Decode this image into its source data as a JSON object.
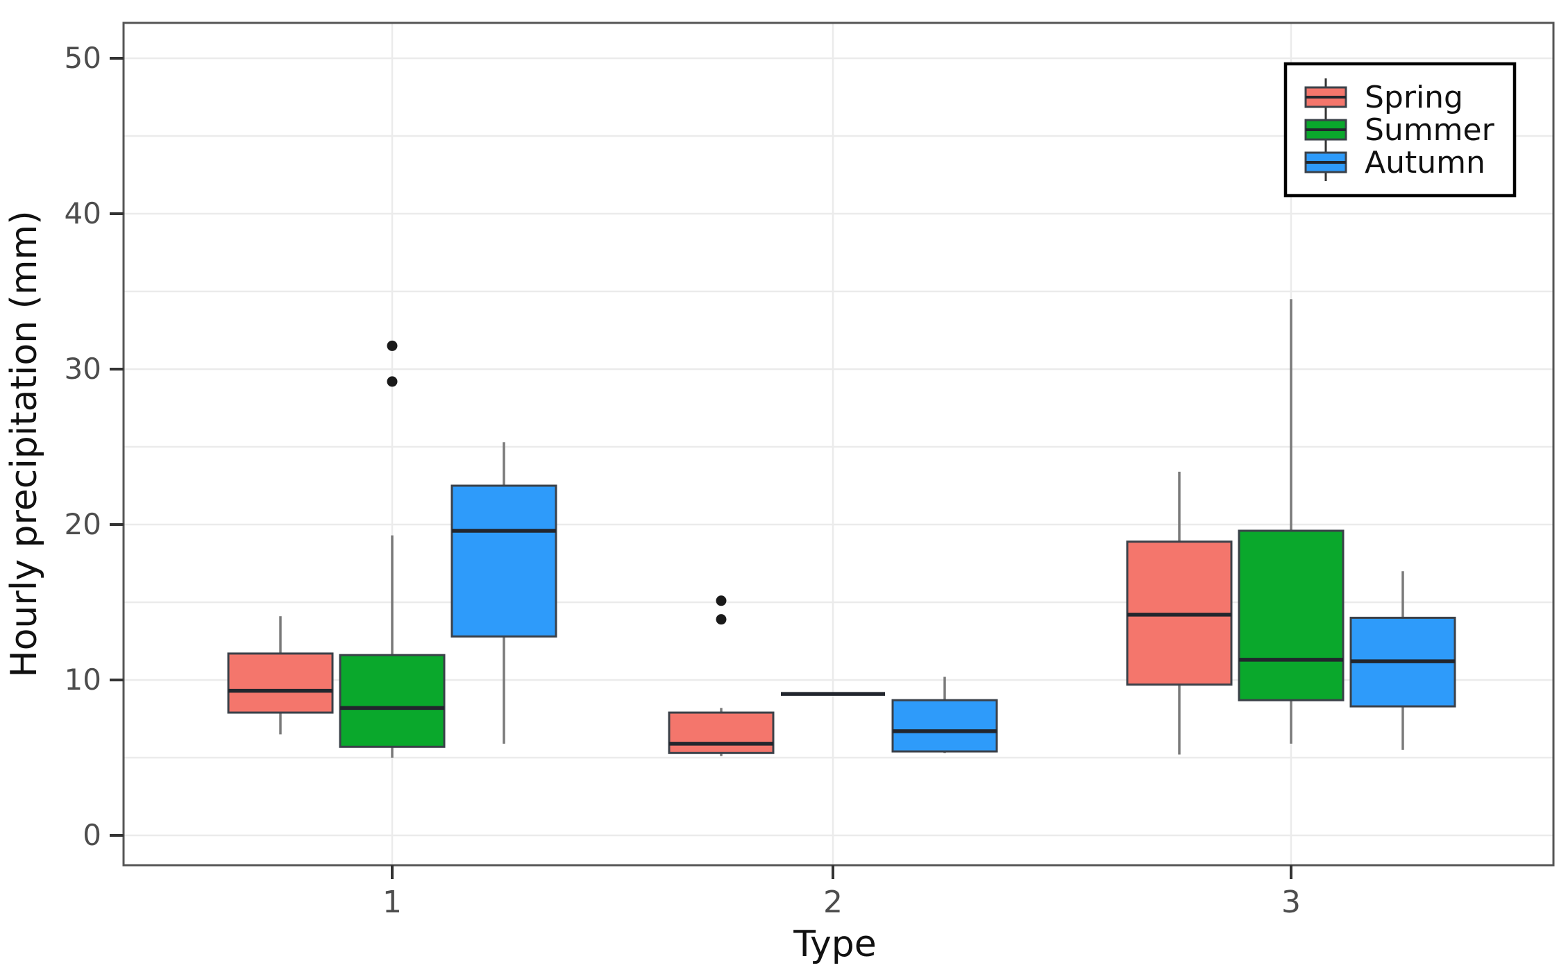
{
  "figure": {
    "background": "#ffffff",
    "frame_color": "#555555",
    "grid_color": "#ebebeb",
    "tick_color": "#333333",
    "tick_label_color": "#4d4d4d",
    "axis_title_color": "#111111",
    "box_stroke_color": "#3b4149",
    "median_color": "#22262d",
    "whisker_color": "#7a7a7a",
    "outlier_color": "#1a1a1a",
    "legend_border_color": "#000000",
    "legend_background": "#ffffff"
  },
  "chart_data": {
    "type": "boxplot",
    "title": "",
    "xlabel": "Type",
    "ylabel": "Hourly precipitation (mm)",
    "categories": [
      "1",
      "2",
      "3"
    ],
    "y_ticks": [
      0,
      10,
      20,
      30,
      40,
      50
    ],
    "grid_step": 5,
    "ylim": [
      -2,
      52.5
    ],
    "grid": true,
    "legend_position": "top-right",
    "legend_entries": [
      "Spring",
      "Summer",
      "Autumn"
    ],
    "series": [
      {
        "name": "Spring",
        "color": "#f4766c",
        "boxes": [
          {
            "category": "1",
            "whisker_low": 6.5,
            "q1": 7.9,
            "median": 9.3,
            "q3": 11.7,
            "whisker_high": 14.1,
            "outliers": []
          },
          {
            "category": "2",
            "whisker_low": 5.1,
            "q1": 5.3,
            "median": 5.9,
            "q3": 7.9,
            "whisker_high": 8.2,
            "outliers": [
              13.9,
              15.1
            ]
          },
          {
            "category": "3",
            "whisker_low": 5.2,
            "q1": 9.7,
            "median": 14.2,
            "q3": 18.9,
            "whisker_high": 23.4,
            "outliers": []
          }
        ]
      },
      {
        "name": "Summer",
        "color": "#0aa82c",
        "boxes": [
          {
            "category": "1",
            "whisker_low": 5.0,
            "q1": 5.7,
            "median": 8.2,
            "q3": 11.6,
            "whisker_high": 19.3,
            "outliers": [
              29.2,
              31.5
            ]
          },
          {
            "category": "2",
            "whisker_low": 9.1,
            "q1": 9.1,
            "median": 9.1,
            "q3": 9.1,
            "whisker_high": 9.1,
            "outliers": []
          },
          {
            "category": "3",
            "whisker_low": 5.9,
            "q1": 8.7,
            "median": 11.3,
            "q3": 19.6,
            "whisker_high": 34.5,
            "outliers": []
          }
        ]
      },
      {
        "name": "Autumn",
        "color": "#2e9bfa",
        "boxes": [
          {
            "category": "1",
            "whisker_low": 5.9,
            "q1": 12.8,
            "median": 19.6,
            "q3": 22.5,
            "whisker_high": 25.3,
            "outliers": []
          },
          {
            "category": "2",
            "whisker_low": 5.3,
            "q1": 5.4,
            "median": 6.7,
            "q3": 8.7,
            "whisker_high": 10.2,
            "outliers": []
          },
          {
            "category": "3",
            "whisker_low": 5.5,
            "q1": 8.3,
            "median": 11.2,
            "q3": 14.0,
            "whisker_high": 17.0,
            "outliers": []
          }
        ]
      }
    ]
  }
}
